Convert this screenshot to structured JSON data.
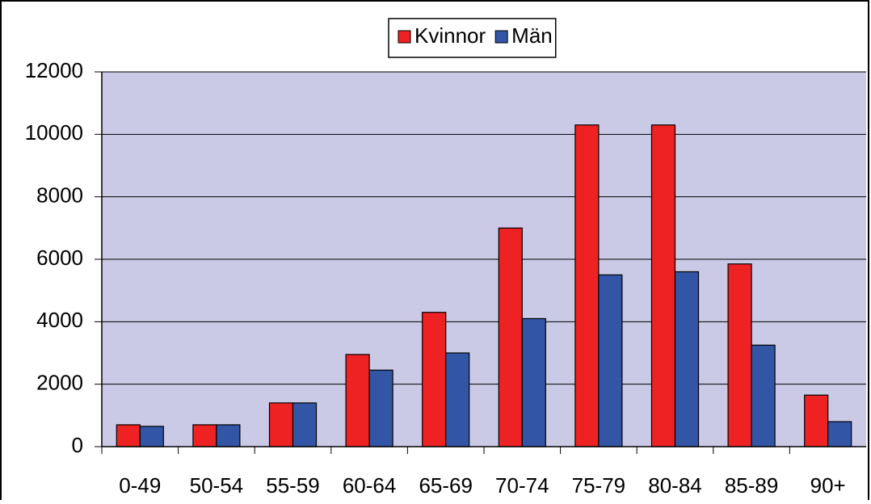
{
  "chart_data": {
    "type": "bar",
    "categories": [
      "0-49",
      "50-54",
      "55-59",
      "60-64",
      "65-69",
      "70-74",
      "75-79",
      "80-84",
      "85-89",
      "90+"
    ],
    "series": [
      {
        "name": "Kvinnor",
        "color": "#ee2222",
        "values": [
          700,
          700,
          1400,
          2950,
          4300,
          7000,
          10300,
          10300,
          5850,
          1650
        ]
      },
      {
        "name": "Män",
        "color": "#3355a5",
        "values": [
          650,
          700,
          1400,
          2450,
          3000,
          4100,
          5500,
          5600,
          3250,
          800
        ]
      }
    ],
    "ylim": [
      0,
      12000
    ],
    "yticks": [
      0,
      2000,
      4000,
      6000,
      8000,
      10000,
      12000
    ],
    "grid": true,
    "legend": "top",
    "background": "#cacae6"
  }
}
